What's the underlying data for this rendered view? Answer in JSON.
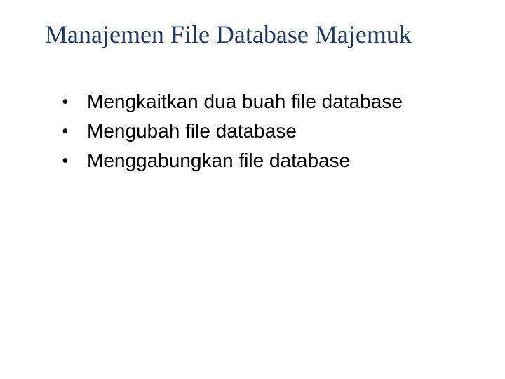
{
  "slide": {
    "title": "Manajemen File Database Majemuk",
    "title_color": "#1f3864",
    "title_fontsize": 36,
    "title_font": "Times New Roman",
    "body_font": "Arial",
    "body_fontsize": 28,
    "body_color": "#000000",
    "background_color": "#ffffff",
    "bullet_char": "•",
    "bullets": [
      "Mengkaitkan dua buah file database",
      "Mengubah file database",
      "Menggabungkan file database"
    ]
  }
}
